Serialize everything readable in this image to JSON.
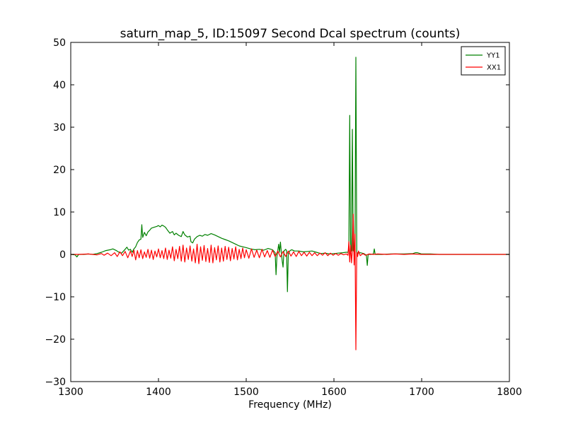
{
  "chart_data": {
    "type": "line",
    "title": "saturn_map_5, ID:15097 Second Dcal spectrum (counts)",
    "xlabel": "Frequency (MHz)",
    "ylabel": "",
    "xlim": [
      1300,
      1800
    ],
    "ylim": [
      -30,
      50
    ],
    "xticks": [
      1300,
      1400,
      1500,
      1600,
      1700,
      1800
    ],
    "yticks": [
      -30,
      -20,
      -10,
      0,
      10,
      20,
      30,
      40,
      50
    ],
    "xtick_labels": [
      "1300",
      "1400",
      "1500",
      "1600",
      "1700",
      "1800"
    ],
    "ytick_labels": [
      "−30",
      "−20",
      "−10",
      "0",
      "10",
      "20",
      "30",
      "40",
      "50"
    ],
    "grid": false,
    "legend_position": "top-right",
    "series": [
      {
        "name": "YY1",
        "color": "#008000",
        "points": [
          [
            1300,
            0.0
          ],
          [
            1305,
            -0.1
          ],
          [
            1307,
            -0.6
          ],
          [
            1309,
            0.0
          ],
          [
            1315,
            0.0
          ],
          [
            1320,
            0.1
          ],
          [
            1325,
            0.0
          ],
          [
            1330,
            0.2
          ],
          [
            1335,
            0.5
          ],
          [
            1340,
            0.9
          ],
          [
            1345,
            1.1
          ],
          [
            1348,
            1.3
          ],
          [
            1352,
            0.9
          ],
          [
            1355,
            0.5
          ],
          [
            1358,
            0.3
          ],
          [
            1362,
            1.2
          ],
          [
            1364,
            1.7
          ],
          [
            1366,
            1.0
          ],
          [
            1368,
            1.2
          ],
          [
            1370,
            0.5
          ],
          [
            1372,
            1.3
          ],
          [
            1374,
            1.8
          ],
          [
            1376,
            2.8
          ],
          [
            1378,
            3.4
          ],
          [
            1380,
            3.6
          ],
          [
            1381,
            7.0
          ],
          [
            1382,
            4.0
          ],
          [
            1384,
            5.2
          ],
          [
            1386,
            4.4
          ],
          [
            1388,
            5.3
          ],
          [
            1390,
            5.7
          ],
          [
            1392,
            6.2
          ],
          [
            1395,
            6.4
          ],
          [
            1398,
            6.6
          ],
          [
            1400,
            6.8
          ],
          [
            1402,
            6.5
          ],
          [
            1404,
            6.9
          ],
          [
            1406,
            6.7
          ],
          [
            1408,
            6.4
          ],
          [
            1410,
            5.8
          ],
          [
            1413,
            5.0
          ],
          [
            1416,
            5.4
          ],
          [
            1418,
            4.6
          ],
          [
            1420,
            5.0
          ],
          [
            1423,
            4.5
          ],
          [
            1426,
            4.2
          ],
          [
            1428,
            5.4
          ],
          [
            1430,
            4.6
          ],
          [
            1433,
            4.1
          ],
          [
            1436,
            4.3
          ],
          [
            1437,
            3.0
          ],
          [
            1439,
            2.7
          ],
          [
            1441,
            3.6
          ],
          [
            1444,
            4.2
          ],
          [
            1447,
            4.5
          ],
          [
            1450,
            4.3
          ],
          [
            1453,
            4.7
          ],
          [
            1456,
            4.5
          ],
          [
            1460,
            4.9
          ],
          [
            1464,
            4.6
          ],
          [
            1468,
            4.2
          ],
          [
            1472,
            3.8
          ],
          [
            1476,
            3.5
          ],
          [
            1480,
            3.2
          ],
          [
            1484,
            2.8
          ],
          [
            1488,
            2.4
          ],
          [
            1492,
            2.0
          ],
          [
            1496,
            1.8
          ],
          [
            1500,
            1.6
          ],
          [
            1505,
            1.3
          ],
          [
            1510,
            1.1
          ],
          [
            1515,
            1.2
          ],
          [
            1520,
            1.0
          ],
          [
            1525,
            1.4
          ],
          [
            1530,
            1.1
          ],
          [
            1533,
            0.4
          ],
          [
            1534,
            -4.8
          ],
          [
            1535,
            -0.5
          ],
          [
            1537,
            2.4
          ],
          [
            1538,
            0.5
          ],
          [
            1539,
            2.9
          ],
          [
            1540,
            0.6
          ],
          [
            1541,
            -1.5
          ],
          [
            1542,
            -3.0
          ],
          [
            1543,
            0.8
          ],
          [
            1545,
            1.2
          ],
          [
            1546,
            0.9
          ],
          [
            1547,
            -8.8
          ],
          [
            1548,
            0.2
          ],
          [
            1550,
            0.9
          ],
          [
            1552,
            1.1
          ],
          [
            1555,
            0.8
          ],
          [
            1560,
            0.8
          ],
          [
            1565,
            0.6
          ],
          [
            1570,
            0.7
          ],
          [
            1575,
            0.8
          ],
          [
            1580,
            0.5
          ],
          [
            1585,
            0.2
          ],
          [
            1590,
            0.3
          ],
          [
            1595,
            0.1
          ],
          [
            1600,
            0.2
          ],
          [
            1605,
            0.3
          ],
          [
            1610,
            0.4
          ],
          [
            1614,
            0.5
          ],
          [
            1616,
            0.5
          ],
          [
            1617,
            1.5
          ],
          [
            1618,
            32.8
          ],
          [
            1619,
            0.7
          ],
          [
            1620,
            0.8
          ],
          [
            1621,
            29.5
          ],
          [
            1622,
            0.9
          ],
          [
            1623,
            0.6
          ],
          [
            1624,
            0.8
          ],
          [
            1625,
            46.5
          ],
          [
            1626,
            0.5
          ],
          [
            1627,
            0.3
          ],
          [
            1630,
            0.4
          ],
          [
            1634,
            0.2
          ],
          [
            1637,
            -0.2
          ],
          [
            1638,
            -2.6
          ],
          [
            1639,
            0.0
          ],
          [
            1642,
            0.0
          ],
          [
            1645,
            0.1
          ],
          [
            1646,
            1.3
          ],
          [
            1647,
            0.0
          ],
          [
            1655,
            0.0
          ],
          [
            1665,
            0.1
          ],
          [
            1680,
            0.1
          ],
          [
            1690,
            0.2
          ],
          [
            1693,
            0.4
          ],
          [
            1695,
            0.4
          ],
          [
            1700,
            0.1
          ],
          [
            1710,
            0.1
          ],
          [
            1720,
            0.0
          ],
          [
            1740,
            0.0
          ],
          [
            1760,
            0.0
          ],
          [
            1780,
            0.0
          ],
          [
            1800,
            0.0
          ]
        ]
      },
      {
        "name": "XX1",
        "color": "#ff0000",
        "points": [
          [
            1300,
            0.0
          ],
          [
            1310,
            0.0
          ],
          [
            1320,
            0.1
          ],
          [
            1330,
            -0.1
          ],
          [
            1335,
            0.2
          ],
          [
            1338,
            -0.2
          ],
          [
            1342,
            0.3
          ],
          [
            1346,
            -0.3
          ],
          [
            1350,
            0.4
          ],
          [
            1353,
            -0.5
          ],
          [
            1356,
            0.6
          ],
          [
            1359,
            -0.3
          ],
          [
            1362,
            0.7
          ],
          [
            1365,
            -0.8
          ],
          [
            1368,
            0.8
          ],
          [
            1370,
            -0.5
          ],
          [
            1372,
            1.0
          ],
          [
            1374,
            -1.3
          ],
          [
            1376,
            0.9
          ],
          [
            1378,
            -0.8
          ],
          [
            1380,
            1.1
          ],
          [
            1382,
            -1.0
          ],
          [
            1384,
            0.6
          ],
          [
            1386,
            -0.7
          ],
          [
            1388,
            1.2
          ],
          [
            1390,
            -0.9
          ],
          [
            1392,
            1.0
          ],
          [
            1394,
            -1.2
          ],
          [
            1396,
            0.8
          ],
          [
            1398,
            -0.6
          ],
          [
            1400,
            1.3
          ],
          [
            1402,
            -0.8
          ],
          [
            1404,
            0.9
          ],
          [
            1406,
            -1.0
          ],
          [
            1408,
            1.5
          ],
          [
            1410,
            -1.2
          ],
          [
            1412,
            1.0
          ],
          [
            1414,
            -0.9
          ],
          [
            1416,
            1.8
          ],
          [
            1418,
            -1.5
          ],
          [
            1420,
            1.2
          ],
          [
            1422,
            -1.0
          ],
          [
            1424,
            1.9
          ],
          [
            1426,
            -1.6
          ],
          [
            1428,
            2.2
          ],
          [
            1430,
            -1.8
          ],
          [
            1432,
            1.5
          ],
          [
            1434,
            -1.2
          ],
          [
            1436,
            2.0
          ],
          [
            1438,
            -1.6
          ],
          [
            1440,
            1.3
          ],
          [
            1442,
            -2.0
          ],
          [
            1444,
            2.4
          ],
          [
            1446,
            -2.2
          ],
          [
            1448,
            1.8
          ],
          [
            1450,
            -1.4
          ],
          [
            1452,
            2.1
          ],
          [
            1454,
            -1.7
          ],
          [
            1456,
            1.4
          ],
          [
            1458,
            -1.9
          ],
          [
            1460,
            2.2
          ],
          [
            1462,
            -2.0
          ],
          [
            1464,
            1.6
          ],
          [
            1466,
            -1.3
          ],
          [
            1468,
            2.0
          ],
          [
            1470,
            -1.8
          ],
          [
            1472,
            1.5
          ],
          [
            1474,
            -1.6
          ],
          [
            1476,
            1.9
          ],
          [
            1478,
            -1.2
          ],
          [
            1480,
            1.7
          ],
          [
            1482,
            -1.5
          ],
          [
            1484,
            1.4
          ],
          [
            1486,
            -1.1
          ],
          [
            1488,
            1.8
          ],
          [
            1490,
            -1.3
          ],
          [
            1492,
            1.2
          ],
          [
            1494,
            -1.0
          ],
          [
            1496,
            1.5
          ],
          [
            1498,
            -0.8
          ],
          [
            1500,
            1.1
          ],
          [
            1503,
            -0.9
          ],
          [
            1506,
            1.3
          ],
          [
            1509,
            -0.7
          ],
          [
            1512,
            1.0
          ],
          [
            1515,
            -0.8
          ],
          [
            1518,
            1.2
          ],
          [
            1521,
            -0.6
          ],
          [
            1524,
            0.9
          ],
          [
            1527,
            -0.7
          ],
          [
            1530,
            1.0
          ],
          [
            1533,
            -0.5
          ],
          [
            1536,
            0.8
          ],
          [
            1539,
            -0.6
          ],
          [
            1542,
            0.7
          ],
          [
            1545,
            -0.5
          ],
          [
            1548,
            0.8
          ],
          [
            1551,
            -0.4
          ],
          [
            1554,
            0.6
          ],
          [
            1557,
            -0.5
          ],
          [
            1560,
            0.7
          ],
          [
            1563,
            -0.3
          ],
          [
            1566,
            0.5
          ],
          [
            1569,
            -0.4
          ],
          [
            1572,
            0.5
          ],
          [
            1575,
            -0.3
          ],
          [
            1578,
            0.4
          ],
          [
            1581,
            -0.3
          ],
          [
            1584,
            0.3
          ],
          [
            1587,
            -0.2
          ],
          [
            1590,
            0.4
          ],
          [
            1593,
            -0.3
          ],
          [
            1596,
            0.3
          ],
          [
            1599,
            -0.2
          ],
          [
            1602,
            0.2
          ],
          [
            1605,
            -0.2
          ],
          [
            1608,
            0.2
          ],
          [
            1611,
            -0.1
          ],
          [
            1614,
            0.1
          ],
          [
            1616,
            -0.2
          ],
          [
            1617,
            3.0
          ],
          [
            1618,
            -1.8
          ],
          [
            1619,
            2.2
          ],
          [
            1620,
            -2.0
          ],
          [
            1621,
            1.0
          ],
          [
            1622,
            9.5
          ],
          [
            1623,
            -2.5
          ],
          [
            1624,
            4.8
          ],
          [
            1625,
            -22.5
          ],
          [
            1626,
            0.5
          ],
          [
            1627,
            -0.5
          ],
          [
            1628,
            0.8
          ],
          [
            1630,
            -0.3
          ],
          [
            1633,
            0.2
          ],
          [
            1636,
            -0.2
          ],
          [
            1640,
            0.1
          ],
          [
            1645,
            0.0
          ],
          [
            1650,
            0.1
          ],
          [
            1660,
            0.0
          ],
          [
            1670,
            0.1
          ],
          [
            1680,
            0.0
          ],
          [
            1690,
            0.1
          ],
          [
            1700,
            0.0
          ],
          [
            1720,
            0.0
          ],
          [
            1740,
            0.0
          ],
          [
            1760,
            0.0
          ],
          [
            1780,
            0.0
          ],
          [
            1800,
            0.0
          ]
        ]
      }
    ]
  }
}
